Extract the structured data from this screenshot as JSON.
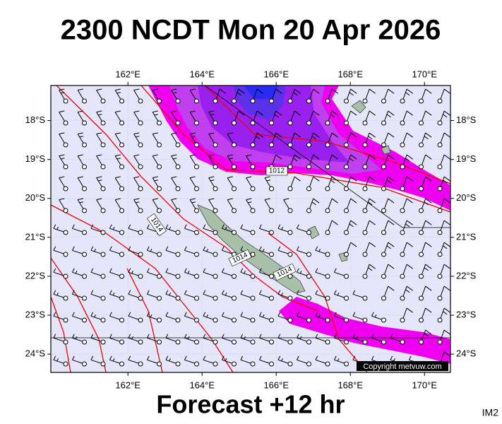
{
  "title": "2300 NCDT Mon 20 Apr 2026",
  "subtitle": "Forecast +12 hr",
  "image_id": "IM2",
  "copyright": "Copyright metvuw.com",
  "map": {
    "xlim": [
      159.92,
      170.7
    ],
    "ylim": [
      -17.1,
      -24.47
    ],
    "lon_ticks": [
      {
        "value": 162,
        "label": "162°E"
      },
      {
        "value": 164,
        "label": "164°E"
      },
      {
        "value": 166,
        "label": "166°E"
      },
      {
        "value": 168,
        "label": "168°E"
      },
      {
        "value": 170,
        "label": "170°E"
      }
    ],
    "lat_ticks": [
      {
        "value": -18,
        "label": "18°S"
      },
      {
        "value": -19,
        "label": "19°S"
      },
      {
        "value": -20,
        "label": "20°S"
      },
      {
        "value": -21,
        "label": "21°S"
      },
      {
        "value": -22,
        "label": "22°S"
      },
      {
        "value": -23,
        "label": "23°S"
      },
      {
        "value": -24,
        "label": "24°S"
      }
    ],
    "isobar_labels": [
      "1012",
      "1014",
      "1014",
      "1014"
    ]
  }
}
